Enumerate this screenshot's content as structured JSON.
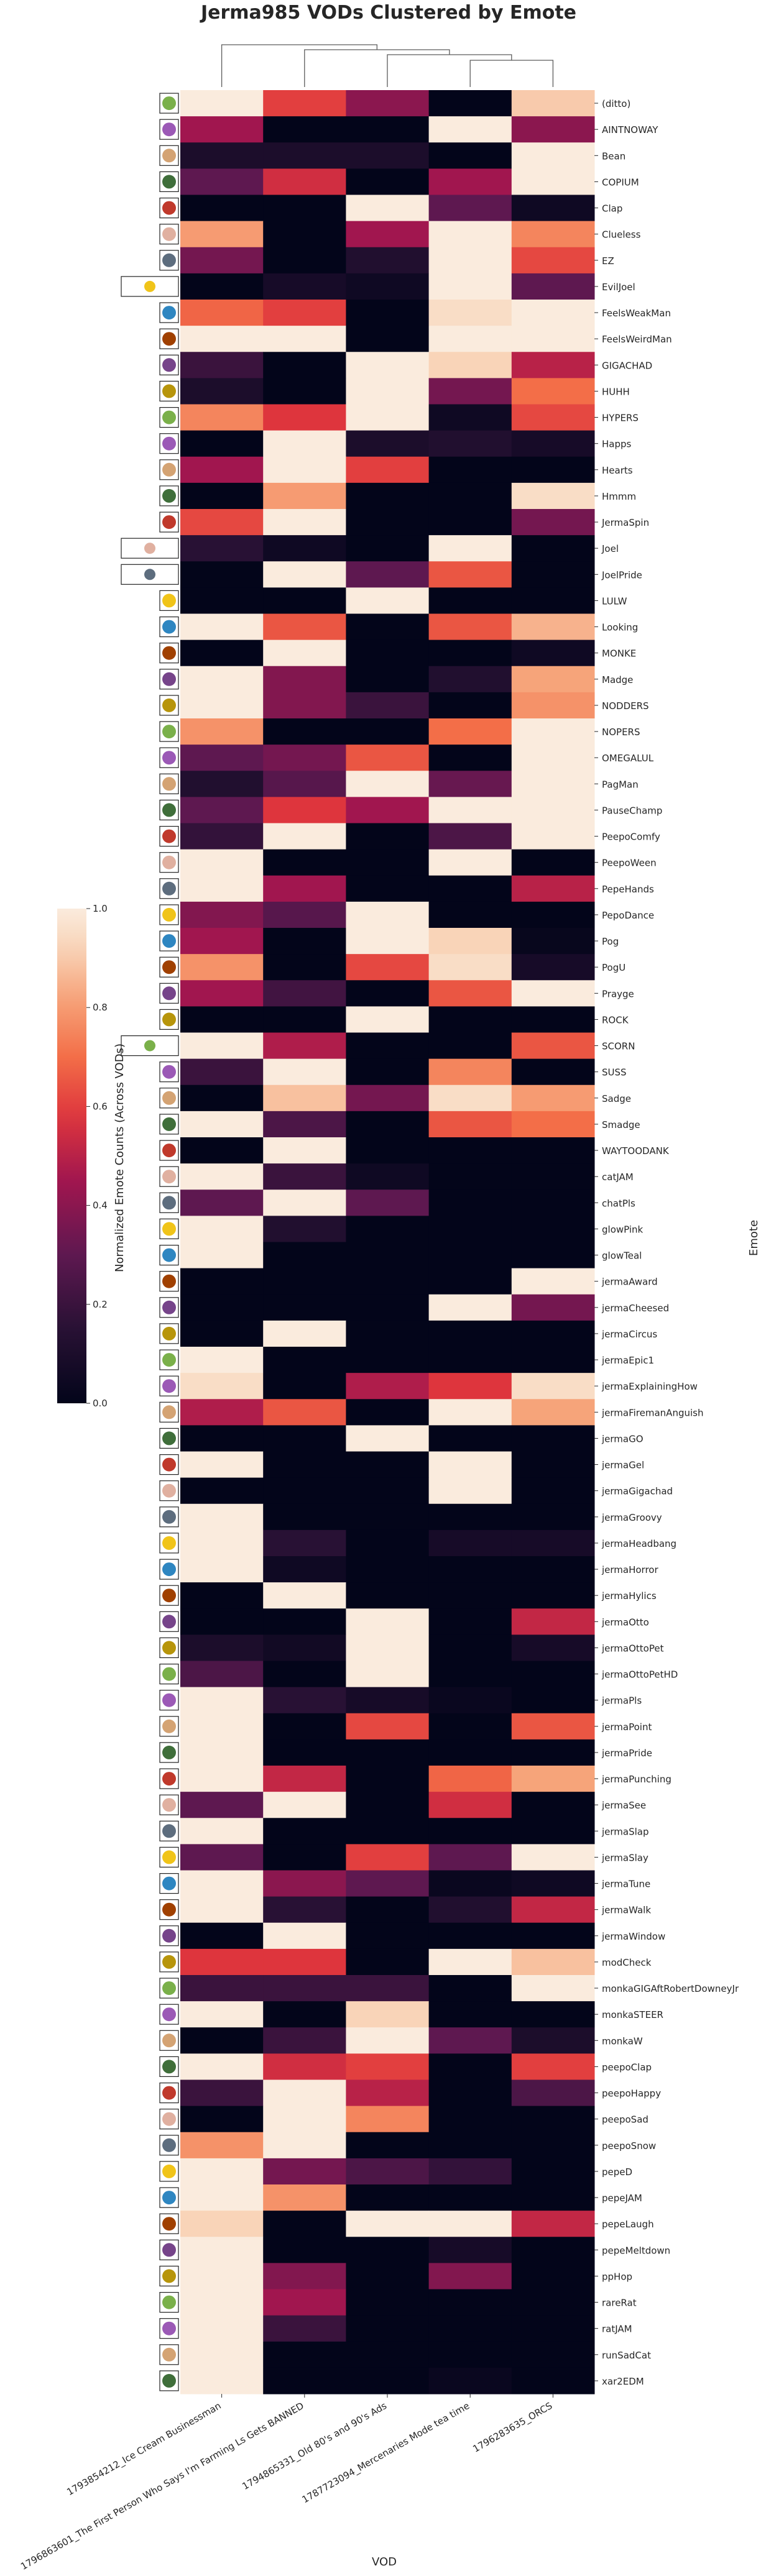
{
  "chart_data": {
    "type": "heatmap",
    "title": "Jerma985 VODs Clustered by Emote",
    "xlabel": "VOD",
    "ylabel": "Emote",
    "colorbar_label": "Normalized Emote Counts (Across VODs)",
    "colorbar_ticks": [
      "0.0",
      "0.2",
      "0.4",
      "0.6",
      "0.8",
      "1.0"
    ],
    "vmin": 0,
    "vmax": 1,
    "colormap": "rocket",
    "vods": [
      "1793854212_Ice Cream Businessman",
      "1796863601_The First Person Who Says I'm Farming Ls Gets BANNED",
      "1794865331_Old 80's and 90's Ads",
      "1787723094_Mercenaries Mode tea time",
      "1796283635_ORCS"
    ],
    "emotes": [
      "(ditto)",
      "AINTNOWAY",
      "Bean",
      "COPIUM",
      "Clap",
      "Clueless",
      "EZ",
      "EvilJoel",
      "FeelsWeakMan",
      "FeelsWeirdMan",
      "GIGACHAD",
      "HUHH",
      "HYPERS",
      "Happs",
      "Hearts",
      "Hmmm",
      "JermaSpin",
      "Joel",
      "JoelPride",
      "LULW",
      "Looking",
      "MONKE",
      "Madge",
      "NODDERS",
      "NOPERS",
      "OMEGALUL",
      "PagMan",
      "PauseChamp",
      "PeepoComfy",
      "PeepoWeen",
      "PepeHands",
      "PepoDance",
      "Pog",
      "PogU",
      "Prayge",
      "ROCK",
      "SCORN",
      "SUSS",
      "Sadge",
      "Smadge",
      "WAYTOODANK",
      "catJAM",
      "chatPls",
      "glowPink",
      "glowTeal",
      "jermaAward",
      "jermaCheesed",
      "jermaCircus",
      "jermaEpic1",
      "jermaExplainingHow",
      "jermaFiremanAnguish",
      "jermaGO",
      "jermaGel",
      "jermaGigachad",
      "jermaGroovy",
      "jermaHeadbang",
      "jermaHorror",
      "jermaHylics",
      "jermaOtto",
      "jermaOttoPet",
      "jermaOttoPetHD",
      "jermaPls",
      "jermaPoint",
      "jermaPride",
      "jermaPunching",
      "jermaSee",
      "jermaSlap",
      "jermaSlay",
      "jermaTune",
      "jermaWalk",
      "jermaWindow",
      "modCheck",
      "monkaGIGAftRobertDowneyJr",
      "monkaSTEER",
      "monkaW",
      "peepoClap",
      "peepoHappy",
      "peepoSad",
      "peepoSnow",
      "pepeD",
      "pepeJAM",
      "pepeLaugh",
      "pepeMeltdown",
      "ppHop",
      "rareRat",
      "ratJAM",
      "runSadCat",
      "xar2EDM"
    ],
    "values": [
      [
        1.0,
        0.6,
        0.4,
        0.0,
        0.9
      ],
      [
        0.45,
        0.0,
        0.0,
        1.0,
        0.4
      ],
      [
        0.1,
        0.1,
        0.1,
        0.0,
        1.0
      ],
      [
        0.3,
        0.55,
        0.0,
        0.45,
        1.0
      ],
      [
        0.0,
        0.0,
        1.0,
        0.3,
        0.05
      ],
      [
        0.8,
        0.0,
        0.45,
        1.0,
        0.75
      ],
      [
        0.35,
        0.0,
        0.12,
        1.0,
        0.62
      ],
      [
        0.0,
        0.08,
        0.05,
        1.0,
        0.3
      ],
      [
        0.68,
        0.6,
        0.0,
        0.95,
        1.0
      ],
      [
        1.0,
        1.0,
        0.0,
        1.0,
        1.0
      ],
      [
        0.2,
        0.0,
        1.0,
        0.92,
        0.5
      ],
      [
        0.1,
        0.0,
        1.0,
        0.35,
        0.7
      ],
      [
        0.75,
        0.58,
        1.0,
        0.05,
        0.62
      ],
      [
        0.0,
        1.0,
        0.1,
        0.12,
        0.08
      ],
      [
        0.45,
        1.0,
        0.6,
        0.0,
        0.0
      ],
      [
        0.0,
        0.8,
        0.0,
        0.0,
        0.95
      ],
      [
        0.62,
        1.0,
        0.0,
        0.0,
        0.35
      ],
      [
        0.15,
        0.05,
        0.0,
        1.0,
        0.0
      ],
      [
        0.0,
        1.0,
        0.3,
        0.65,
        0.0
      ],
      [
        0.0,
        0.0,
        1.0,
        0.0,
        0.0
      ],
      [
        1.0,
        0.65,
        0.0,
        0.65,
        0.85
      ],
      [
        0.0,
        1.0,
        0.0,
        0.0,
        0.05
      ],
      [
        1.0,
        0.38,
        0.0,
        0.12,
        0.82
      ],
      [
        1.0,
        0.38,
        0.2,
        0.0,
        0.78
      ],
      [
        0.78,
        0.0,
        0.0,
        0.7,
        1.0
      ],
      [
        0.3,
        0.35,
        0.65,
        0.0,
        1.0
      ],
      [
        0.12,
        0.28,
        1.0,
        0.32,
        1.0
      ],
      [
        0.3,
        0.58,
        0.45,
        1.0,
        1.0
      ],
      [
        0.18,
        1.0,
        0.0,
        0.25,
        1.0
      ],
      [
        1.0,
        0.0,
        0.0,
        1.0,
        0.0
      ],
      [
        1.0,
        0.45,
        0.0,
        0.0,
        0.5
      ],
      [
        0.38,
        0.28,
        1.0,
        0.0,
        0.0
      ],
      [
        0.45,
        0.0,
        1.0,
        0.92,
        0.02
      ],
      [
        0.78,
        0.0,
        0.62,
        0.95,
        0.08
      ],
      [
        0.45,
        0.22,
        0.0,
        0.65,
        1.0
      ],
      [
        0.0,
        0.0,
        1.0,
        0.0,
        0.0
      ],
      [
        1.0,
        0.48,
        0.0,
        0.0,
        0.65
      ],
      [
        0.2,
        1.0,
        0.0,
        0.75,
        0.0
      ],
      [
        0.0,
        0.88,
        0.35,
        0.95,
        0.8
      ],
      [
        1.0,
        0.25,
        0.0,
        0.65,
        0.7
      ],
      [
        0.0,
        1.0,
        0.0,
        0.0,
        0.0
      ],
      [
        1.0,
        0.2,
        0.05,
        0.0,
        0.0
      ],
      [
        0.3,
        1.0,
        0.3,
        0.0,
        0.0
      ],
      [
        1.0,
        0.12,
        0.0,
        0.0,
        0.0
      ],
      [
        1.0,
        0.0,
        0.0,
        0.0,
        0.0
      ],
      [
        0.0,
        0.0,
        0.0,
        0.0,
        1.0
      ],
      [
        0.0,
        0.0,
        0.0,
        1.0,
        0.35
      ],
      [
        0.0,
        1.0,
        0.0,
        0.0,
        0.0
      ],
      [
        1.0,
        0.0,
        0.0,
        0.0,
        0.0
      ],
      [
        0.95,
        0.0,
        0.48,
        0.58,
        0.95
      ],
      [
        0.48,
        0.65,
        0.0,
        1.0,
        0.82
      ],
      [
        0.0,
        0.0,
        1.0,
        0.0,
        0.0
      ],
      [
        1.0,
        0.0,
        0.0,
        1.0,
        0.0
      ],
      [
        0.0,
        0.0,
        0.0,
        1.0,
        0.0
      ],
      [
        1.0,
        0.0,
        0.0,
        0.0,
        0.0
      ],
      [
        1.0,
        0.15,
        0.0,
        0.08,
        0.08
      ],
      [
        1.0,
        0.05,
        0.0,
        0.0,
        0.0
      ],
      [
        0.0,
        1.0,
        0.0,
        0.0,
        0.0
      ],
      [
        0.0,
        0.0,
        1.0,
        0.0,
        0.52
      ],
      [
        0.1,
        0.06,
        1.0,
        0.0,
        0.08
      ],
      [
        0.25,
        0.0,
        1.0,
        0.0,
        0.0
      ],
      [
        1.0,
        0.15,
        0.08,
        0.03,
        0.0
      ],
      [
        1.0,
        0.0,
        0.62,
        0.0,
        0.65
      ],
      [
        1.0,
        0.0,
        0.0,
        0.0,
        0.0
      ],
      [
        1.0,
        0.52,
        0.0,
        0.68,
        0.82
      ],
      [
        0.3,
        1.0,
        0.0,
        0.55,
        0.0
      ],
      [
        1.0,
        0.0,
        0.0,
        0.0,
        0.0
      ],
      [
        0.3,
        0.0,
        0.6,
        0.3,
        1.0
      ],
      [
        1.0,
        0.4,
        0.3,
        0.03,
        0.05
      ],
      [
        1.0,
        0.15,
        0.0,
        0.12,
        0.52
      ],
      [
        0.0,
        1.0,
        0.0,
        0.0,
        0.0
      ],
      [
        0.58,
        0.58,
        0.0,
        1.0,
        0.88
      ],
      [
        0.2,
        0.2,
        0.2,
        0.0,
        1.0
      ],
      [
        1.0,
        0.0,
        0.92,
        0.0,
        0.0
      ],
      [
        0.0,
        0.2,
        1.0,
        0.3,
        0.1
      ],
      [
        1.0,
        0.55,
        0.6,
        0.0,
        0.6
      ],
      [
        0.2,
        1.0,
        0.5,
        0.0,
        0.25
      ],
      [
        0.0,
        1.0,
        0.75,
        0.0,
        0.0
      ],
      [
        0.78,
        1.0,
        0.0,
        0.0,
        0.0
      ],
      [
        1.0,
        0.35,
        0.25,
        0.18,
        0.0
      ],
      [
        1.0,
        0.78,
        0.0,
        0.0,
        0.0
      ],
      [
        0.92,
        0.0,
        1.0,
        1.0,
        0.52
      ],
      [
        1.0,
        0.0,
        0.0,
        0.08,
        0.0
      ],
      [
        1.0,
        0.38,
        0.0,
        0.38,
        0.0
      ],
      [
        1.0,
        0.45,
        0.0,
        0.0,
        0.0
      ],
      [
        1.0,
        0.2,
        0.0,
        0.0,
        0.0
      ],
      [
        1.0,
        0.0,
        0.0,
        0.0,
        0.0
      ],
      [
        1.0,
        0.0,
        0.0,
        0.03,
        0.0
      ]
    ]
  }
}
